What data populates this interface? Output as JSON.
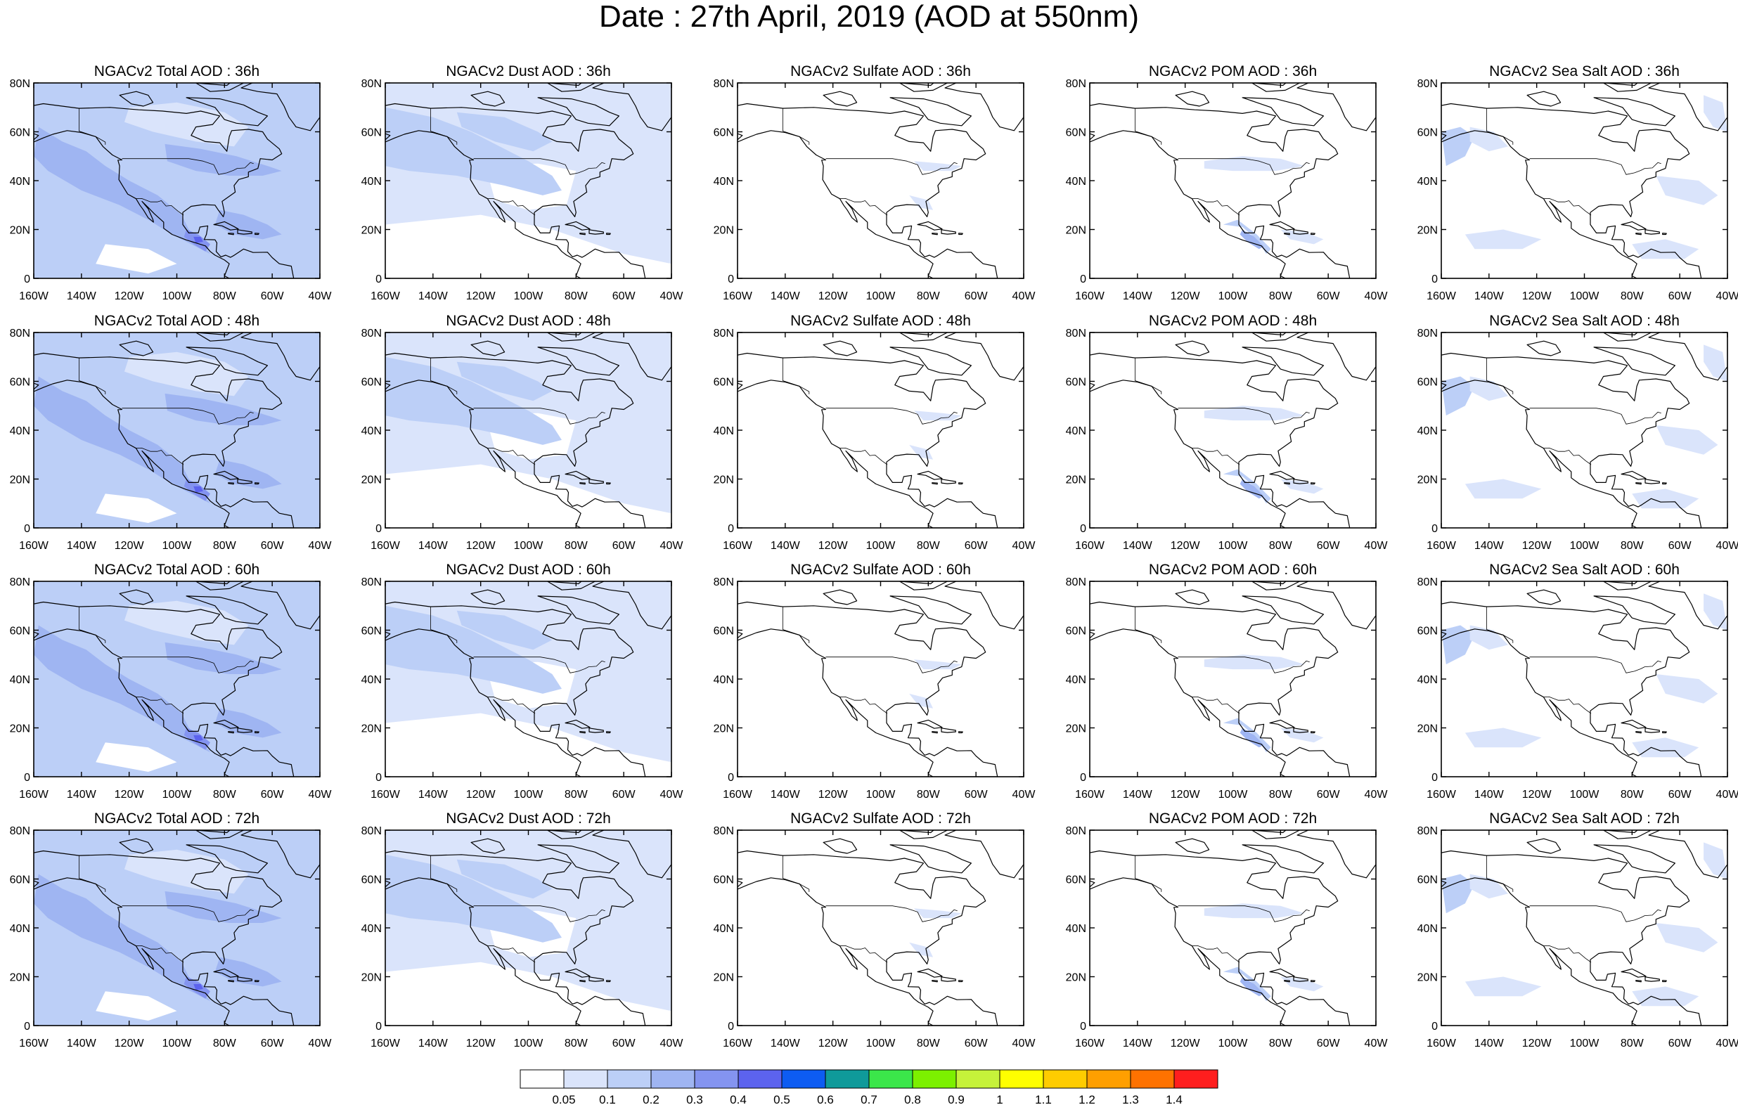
{
  "title": "Date : 27th April, 2019 (AOD at 550nm)",
  "columns": [
    {
      "key": "total",
      "prefix": "NGACv2 Total AOD"
    },
    {
      "key": "dust",
      "prefix": "NGACv2 Dust AOD"
    },
    {
      "key": "sulfate",
      "prefix": "NGACv2 Sulfate AOD"
    },
    {
      "key": "pom",
      "prefix": "NGACv2 POM AOD"
    },
    {
      "key": "seasalt",
      "prefix": "NGACv2 Sea Salt AOD"
    }
  ],
  "rows": [
    {
      "hour": "36h",
      "titles": [
        "NGACv2 Total AOD : 36h",
        "NGACv2 Dust AOD : 36h",
        "NGACv2 Sulfate AOD : 36h",
        "NGACv2 POM AOD : 36h",
        "NGACv2 Sea Salt AOD : 36h"
      ]
    },
    {
      "hour": "48h",
      "titles": [
        "NGACv2 Total AOD : 48h",
        "NGACv2 Dust AOD : 48h",
        "NGACv2 Sulfate AOD : 48h",
        "NGACv2 POM AOD : 48h",
        "NGACv2 Sea Salt AOD : 48h"
      ]
    },
    {
      "hour": "60h",
      "titles": [
        "NGACv2 Total AOD : 60h",
        "NGACv2 Dust AOD : 60h",
        "NGACv2 Sulfate AOD : 60h",
        "NGACv2 POM AOD : 60h",
        "NGACv2 Sea Salt AOD : 60h"
      ]
    },
    {
      "hour": "72h",
      "titles": [
        "NGACv2 Total AOD : 72h",
        "NGACv2 Dust AOD : 72h",
        "NGACv2 Sulfate AOD : 72h",
        "NGACv2 POM AOD : 72h",
        "NGACv2 Sea Salt  AOD : 72h"
      ]
    }
  ],
  "axes": {
    "x_ticks": [
      "160W",
      "140W",
      "120W",
      "100W",
      "80W",
      "60W",
      "40W"
    ],
    "y_ticks": [
      "80N",
      "60N",
      "40N",
      "20N",
      "0"
    ],
    "lon_range": [
      -160,
      -40
    ],
    "lat_range": [
      0,
      80
    ]
  },
  "colorbar": {
    "labels": [
      "0.05",
      "0.1",
      "0.2",
      "0.3",
      "0.4",
      "0.5",
      "0.6",
      "0.7",
      "0.8",
      "0.9",
      "1",
      "1.1",
      "1.2",
      "1.3",
      "1.4"
    ],
    "colors": [
      "#ffffff",
      "#dae4fb",
      "#bccff7",
      "#9fb5f2",
      "#8494f0",
      "#5c63ee",
      "#0d5cf2",
      "#0f9a9a",
      "#3be64a",
      "#7cf000",
      "#c6f23a",
      "#ffff00",
      "#ffcc00",
      "#ff9f00",
      "#ff7200",
      "#ff1e1e"
    ]
  },
  "ocean_level": {
    "total": 2,
    "dust": 1,
    "sulfate": 0,
    "pom": 0,
    "seasalt": 0
  }
}
